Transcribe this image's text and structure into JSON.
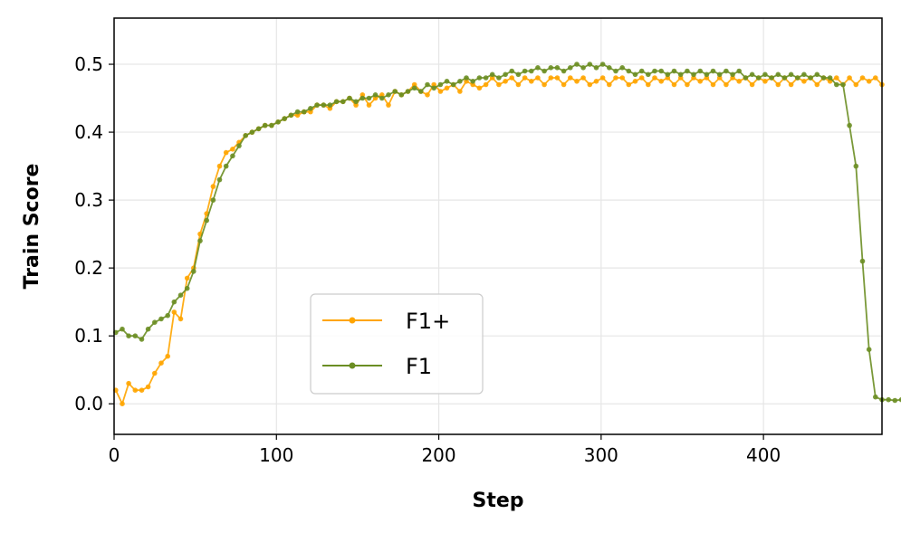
{
  "chart_data": {
    "type": "line",
    "xlabel": "Step",
    "ylabel": "Train Score",
    "xlim": [
      0,
      473
    ],
    "ylim": [
      -0.045,
      0.568
    ],
    "xticks": [
      0,
      100,
      200,
      300,
      400
    ],
    "yticks": [
      0.0,
      0.1,
      0.2,
      0.3,
      0.4,
      0.5
    ],
    "xtick_labels": [
      "0",
      "100",
      "200",
      "300",
      "400"
    ],
    "ytick_labels": [
      "0.0",
      "0.1",
      "0.2",
      "0.3",
      "0.4",
      "0.5"
    ],
    "grid": true,
    "legend_position": "lower-center",
    "series": [
      {
        "name": "F1+",
        "color": "#FFA500",
        "x_start": 1,
        "x_step": 4,
        "values": [
          0.02,
          0.0,
          0.03,
          0.02,
          0.02,
          0.025,
          0.045,
          0.06,
          0.07,
          0.135,
          0.125,
          0.185,
          0.2,
          0.25,
          0.28,
          0.32,
          0.35,
          0.37,
          0.375,
          0.385,
          0.395,
          0.4,
          0.405,
          0.41,
          0.41,
          0.415,
          0.42,
          0.425,
          0.425,
          0.43,
          0.43,
          0.44,
          0.44,
          0.435,
          0.445,
          0.445,
          0.45,
          0.44,
          0.455,
          0.44,
          0.45,
          0.455,
          0.44,
          0.46,
          0.455,
          0.46,
          0.47,
          0.46,
          0.455,
          0.47,
          0.46,
          0.465,
          0.47,
          0.46,
          0.475,
          0.47,
          0.465,
          0.47,
          0.48,
          0.47,
          0.475,
          0.48,
          0.47,
          0.48,
          0.475,
          0.48,
          0.47,
          0.48,
          0.48,
          0.47,
          0.48,
          0.475,
          0.48,
          0.47,
          0.475,
          0.48,
          0.47,
          0.48,
          0.48,
          0.47,
          0.475,
          0.48,
          0.47,
          0.48,
          0.475,
          0.48,
          0.47,
          0.48,
          0.47,
          0.48,
          0.475,
          0.48,
          0.47,
          0.48,
          0.47,
          0.48,
          0.475,
          0.48,
          0.47,
          0.48,
          0.475,
          0.48,
          0.47,
          0.48,
          0.47,
          0.48,
          0.475,
          0.48,
          0.47,
          0.48,
          0.475,
          0.48,
          0.47,
          0.48,
          0.47,
          0.48,
          0.475,
          0.48,
          0.47
        ]
      },
      {
        "name": "F1",
        "color": "#6B8E23",
        "x_start": 1,
        "x_step": 4,
        "values": [
          0.105,
          0.11,
          0.1,
          0.1,
          0.095,
          0.11,
          0.12,
          0.125,
          0.13,
          0.15,
          0.16,
          0.17,
          0.195,
          0.24,
          0.27,
          0.3,
          0.33,
          0.35,
          0.365,
          0.38,
          0.395,
          0.4,
          0.405,
          0.41,
          0.41,
          0.415,
          0.42,
          0.425,
          0.43,
          0.43,
          0.435,
          0.44,
          0.44,
          0.44,
          0.445,
          0.445,
          0.45,
          0.445,
          0.45,
          0.45,
          0.455,
          0.45,
          0.455,
          0.46,
          0.455,
          0.46,
          0.465,
          0.46,
          0.47,
          0.465,
          0.47,
          0.475,
          0.47,
          0.475,
          0.48,
          0.475,
          0.48,
          0.48,
          0.485,
          0.48,
          0.485,
          0.49,
          0.485,
          0.49,
          0.49,
          0.495,
          0.49,
          0.495,
          0.495,
          0.49,
          0.495,
          0.5,
          0.495,
          0.5,
          0.495,
          0.5,
          0.495,
          0.49,
          0.495,
          0.49,
          0.485,
          0.49,
          0.485,
          0.49,
          0.49,
          0.485,
          0.49,
          0.485,
          0.49,
          0.485,
          0.49,
          0.485,
          0.49,
          0.485,
          0.49,
          0.485,
          0.49,
          0.48,
          0.485,
          0.48,
          0.485,
          0.48,
          0.485,
          0.48,
          0.485,
          0.48,
          0.485,
          0.48,
          0.485,
          0.48,
          0.48,
          0.47,
          0.47,
          0.41,
          0.35,
          0.21,
          0.08,
          0.01,
          0.006,
          0.006,
          0.005,
          0.006,
          0.007,
          0.008
        ]
      }
    ]
  }
}
